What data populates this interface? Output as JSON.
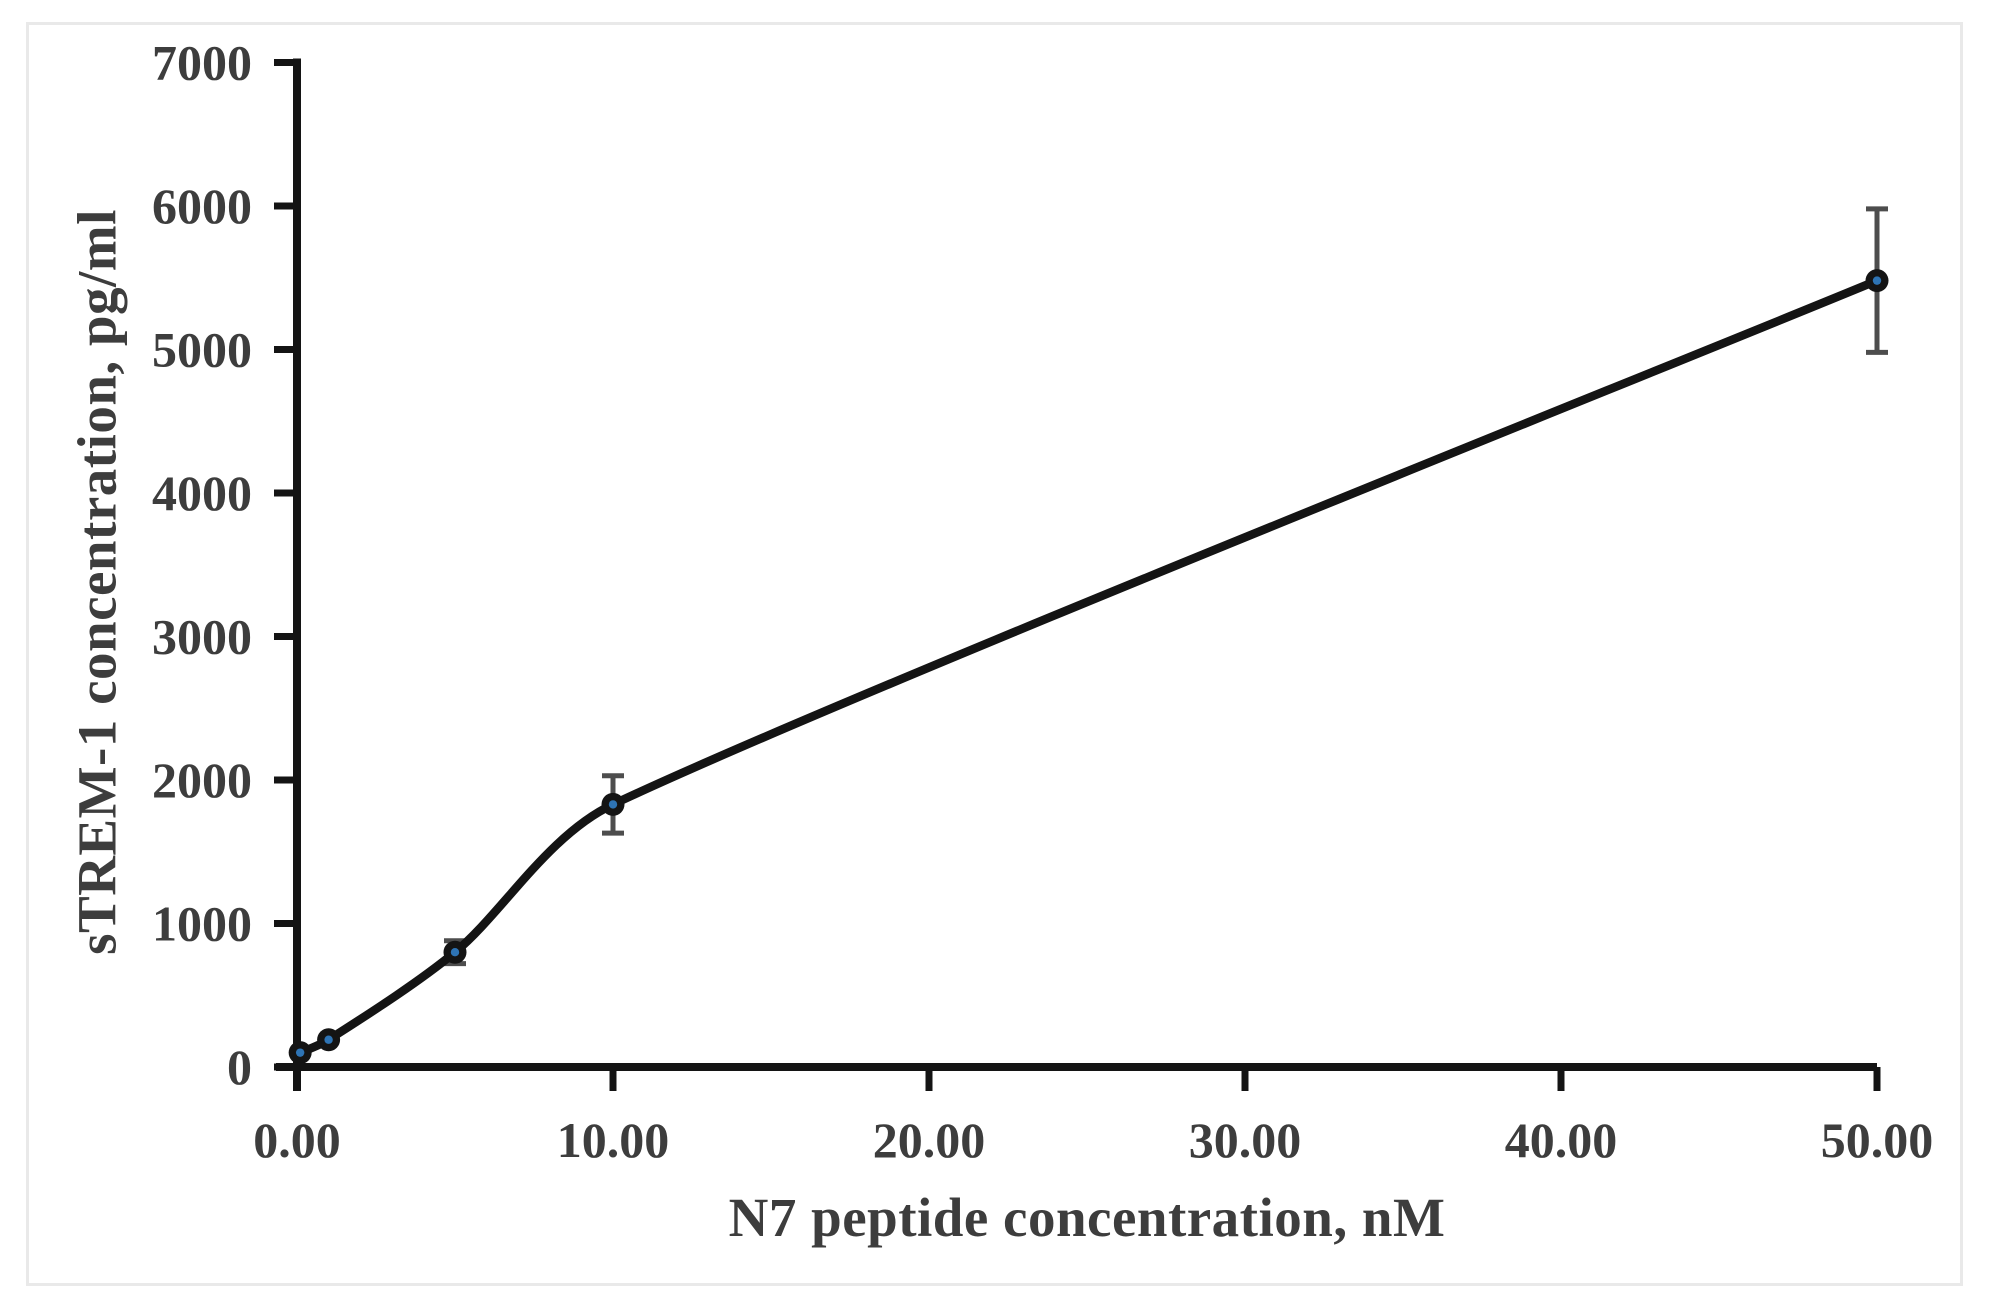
{
  "figure": {
    "background": "#ffffff",
    "border_color": "#e9e9e9"
  },
  "chart_data": {
    "type": "line",
    "title": "",
    "xlabel": "N7 peptide concentration, nM",
    "ylabel": "sTREM-1 concentration, pg/ml",
    "x": [
      0.1,
      1.0,
      5.0,
      10.0,
      50.0
    ],
    "y": [
      100,
      190,
      800,
      1830,
      5480
    ],
    "y_err": [
      0,
      0,
      80,
      200,
      500
    ],
    "xlim": [
      0,
      50
    ],
    "ylim": [
      0,
      7000
    ],
    "xticks": {
      "values": [
        0,
        10,
        20,
        30,
        40,
        50
      ],
      "labels": [
        "0.00",
        "10.00",
        "20.00",
        "30.00",
        "40.00",
        "50.00"
      ]
    },
    "yticks": {
      "values": [
        0,
        1000,
        2000,
        3000,
        4000,
        5000,
        6000,
        7000
      ],
      "labels": [
        "0",
        "1000",
        "2000",
        "3000",
        "4000",
        "5000",
        "6000",
        "7000"
      ]
    },
    "grid": false,
    "legend": false,
    "line_smoothing": "smooth",
    "styles": {
      "axis_color": "#141414",
      "line_color": "#141414",
      "marker_fill": "#141414",
      "marker_dot_color": "#2e74b5",
      "error_bar_color": "#4d4d4d",
      "text_color": "#3d3d3d"
    }
  }
}
